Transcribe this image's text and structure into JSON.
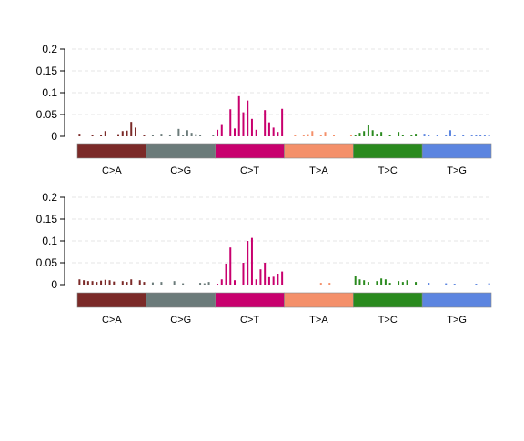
{
  "chart_data": [
    {
      "type": "bar",
      "ylim": [
        0,
        0.2
      ],
      "yticks": [
        "0",
        "0.05",
        "0.1",
        "0.15",
        "0.2"
      ],
      "grid": true,
      "mutation_types": [
        "C>A",
        "C>G",
        "C>T",
        "T>A",
        "T>C",
        "T>G"
      ],
      "type_colors": [
        "#7B2A28",
        "#6B7B7A",
        "#C8006E",
        "#F4906A",
        "#2A8A1E",
        "#5C85E0"
      ],
      "values": [
        [
          0.006,
          0.0,
          0.0,
          0.003,
          0.0,
          0.004,
          0.012,
          0.0,
          0.0,
          0.005,
          0.012,
          0.013,
          0.033,
          0.02,
          0.0,
          0.002
        ],
        [
          0.0,
          0.004,
          0.0,
          0.006,
          0.0,
          0.003,
          0.0,
          0.017,
          0.004,
          0.014,
          0.008,
          0.005,
          0.004,
          0.0,
          0.0,
          0.003
        ],
        [
          0.015,
          0.028,
          0.0,
          0.062,
          0.018,
          0.092,
          0.055,
          0.082,
          0.04,
          0.015,
          0.0,
          0.06,
          0.032,
          0.02,
          0.01,
          0.063
        ],
        [
          0.0,
          0.0,
          0.002,
          0.0,
          0.002,
          0.005,
          0.012,
          0.0,
          0.003,
          0.01,
          0.0,
          0.003,
          0.0,
          0.0,
          0.0,
          0.002
        ],
        [
          0.004,
          0.008,
          0.012,
          0.025,
          0.014,
          0.006,
          0.01,
          0.0,
          0.004,
          0.0,
          0.01,
          0.004,
          0.0,
          0.002,
          0.006,
          0.0
        ],
        [
          0.006,
          0.004,
          0.0,
          0.004,
          0.0,
          0.002,
          0.014,
          0.003,
          0.0,
          0.004,
          0.0,
          0.002,
          0.003,
          0.003,
          0.002,
          0.002
        ]
      ]
    },
    {
      "type": "bar",
      "ylim": [
        0,
        0.2
      ],
      "yticks": [
        "0",
        "0.05",
        "0.1",
        "0.15",
        "0.2"
      ],
      "grid": true,
      "mutation_types": [
        "C>A",
        "C>G",
        "C>T",
        "T>A",
        "T>C",
        "T>G"
      ],
      "type_colors": [
        "#7B2A28",
        "#6B7B7A",
        "#C8006E",
        "#F4906A",
        "#2A8A1E",
        "#5C85E0"
      ],
      "values": [
        [
          0.012,
          0.01,
          0.008,
          0.008,
          0.006,
          0.009,
          0.011,
          0.01,
          0.007,
          0.0,
          0.008,
          0.006,
          0.012,
          0.0,
          0.01,
          0.006
        ],
        [
          0.0,
          0.005,
          0.0,
          0.006,
          0.0,
          0.0,
          0.008,
          0.0,
          0.003,
          0.0,
          0.0,
          0.0,
          0.004,
          0.003,
          0.006,
          0.0
        ],
        [
          0.002,
          0.012,
          0.048,
          0.085,
          0.01,
          0.0,
          0.05,
          0.1,
          0.107,
          0.012,
          0.035,
          0.05,
          0.017,
          0.018,
          0.025,
          0.03
        ],
        [
          0.0,
          0.0,
          0.0,
          0.0,
          0.0,
          0.0,
          0.0,
          0.0,
          0.004,
          0.0,
          0.004,
          0.0,
          0.0,
          0.0,
          0.0,
          0.0
        ],
        [
          0.02,
          0.012,
          0.01,
          0.006,
          0.0,
          0.008,
          0.014,
          0.012,
          0.004,
          0.0,
          0.008,
          0.006,
          0.01,
          0.0,
          0.006,
          0.0
        ],
        [
          0.0,
          0.004,
          0.0,
          0.0,
          0.0,
          0.003,
          0.0,
          0.002,
          0.0,
          0.0,
          0.0,
          0.0,
          0.002,
          0.0,
          0.0,
          0.003
        ]
      ]
    }
  ]
}
